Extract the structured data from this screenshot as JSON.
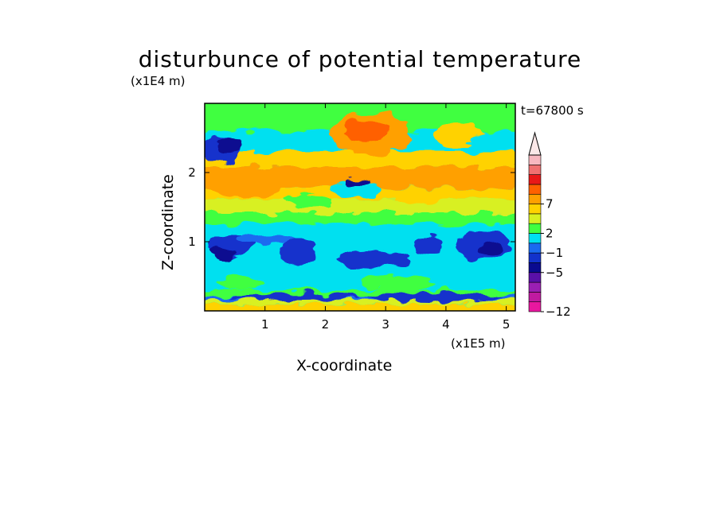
{
  "chart_data": {
    "type": "heatmap",
    "title": "disturbunce of potential temperature",
    "xlabel": "X-coordinate",
    "ylabel": "Z-coordinate",
    "x_unit": "(x1E5 m)",
    "y_unit": "(x1E4 m)",
    "time_label": "t=67800 s",
    "xlim": [
      0,
      5.15
    ],
    "ylim": [
      0,
      3.0
    ],
    "x_ticks": [
      "1",
      "2",
      "3",
      "4",
      "5"
    ],
    "y_ticks": [
      "1",
      "2"
    ],
    "x_tick_values": [
      1,
      2,
      3,
      4,
      5
    ],
    "y_tick_values": [
      1,
      2
    ],
    "colorbar_labels": [
      "7",
      "2",
      "−1",
      "−5",
      "−12"
    ],
    "colorbar_label_levels": [
      7,
      2,
      -1,
      -5,
      -12
    ],
    "colorbar_colors": [
      "#e8179f",
      "#c01aa0",
      "#9b1fb3",
      "#5a10a8",
      "#0a0a90",
      "#1232cc",
      "#1a6af0",
      "#00e0f0",
      "#40ff40",
      "#d8f020",
      "#ffd200",
      "#ffa000",
      "#ff6000",
      "#e81818",
      "#f07070",
      "#f8b8c0"
    ],
    "colors": {
      "very_cold": "#0a0a90",
      "cold": "#1232cc",
      "cool": "#1a6af0",
      "near_zero": "#00e0f0",
      "slight_warm": "#40ff40",
      "warm": "#d8f020",
      "warmer": "#ffd200",
      "hot": "#ffa000",
      "hotter": "#ff6000"
    },
    "bands": [
      {
        "z0": 0.0,
        "z1": 0.1,
        "level": "warmer"
      },
      {
        "z0": 0.1,
        "z1": 0.16,
        "level": "warm"
      },
      {
        "z0": 0.16,
        "z1": 0.22,
        "level": "cool"
      },
      {
        "z0": 0.22,
        "z1": 0.3,
        "level": "slight_warm"
      },
      {
        "z0": 0.3,
        "z1": 0.55,
        "level": "near_zero"
      },
      {
        "z0": 0.55,
        "z1": 1.25,
        "level": "near_zero"
      },
      {
        "z0": 1.25,
        "z1": 1.42,
        "level": "slight_warm"
      },
      {
        "z0": 1.42,
        "z1": 1.62,
        "level": "warm"
      },
      {
        "z0": 1.62,
        "z1": 1.78,
        "level": "warmer"
      },
      {
        "z0": 1.78,
        "z1": 2.08,
        "level": "hot"
      },
      {
        "z0": 2.08,
        "z1": 2.3,
        "level": "warmer"
      },
      {
        "z0": 2.3,
        "z1": 2.6,
        "level": "near_zero"
      },
      {
        "z0": 2.6,
        "z1": 3.0,
        "level": "slight_warm"
      }
    ],
    "blobs": [
      {
        "x": 0.4,
        "z": 0.95,
        "rx": 0.4,
        "rz": 0.16,
        "level": "cold"
      },
      {
        "x": 0.3,
        "z": 0.85,
        "rx": 0.2,
        "rz": 0.08,
        "level": "very_cold"
      },
      {
        "x": 1.55,
        "z": 0.85,
        "rx": 0.3,
        "rz": 0.2,
        "level": "cold"
      },
      {
        "x": 2.8,
        "z": 0.75,
        "rx": 0.6,
        "rz": 0.12,
        "level": "cold"
      },
      {
        "x": 3.7,
        "z": 0.95,
        "rx": 0.25,
        "rz": 0.12,
        "level": "cold"
      },
      {
        "x": 4.6,
        "z": 0.95,
        "rx": 0.45,
        "rz": 0.22,
        "level": "cold"
      },
      {
        "x": 4.75,
        "z": 0.9,
        "rx": 0.2,
        "rz": 0.1,
        "level": "very_cold"
      },
      {
        "x": 1.0,
        "z": 1.05,
        "rx": 0.5,
        "rz": 0.08,
        "level": "cool"
      },
      {
        "x": 3.8,
        "z": 0.2,
        "rx": 1.1,
        "rz": 0.06,
        "level": "cold"
      },
      {
        "x": 1.5,
        "z": 0.2,
        "rx": 1.1,
        "rz": 0.05,
        "level": "cold"
      },
      {
        "x": 0.25,
        "z": 2.35,
        "rx": 0.35,
        "rz": 0.2,
        "level": "cold"
      },
      {
        "x": 0.4,
        "z": 2.4,
        "rx": 0.22,
        "rz": 0.12,
        "level": "very_cold"
      },
      {
        "x": 1.4,
        "z": 2.4,
        "rx": 0.55,
        "rz": 0.08,
        "level": "near_zero"
      },
      {
        "x": 2.5,
        "z": 1.75,
        "rx": 0.45,
        "rz": 0.1,
        "level": "near_zero"
      },
      {
        "x": 2.55,
        "z": 1.85,
        "rx": 0.2,
        "rz": 0.06,
        "level": "very_cold"
      },
      {
        "x": 0.7,
        "z": 1.82,
        "rx": 0.6,
        "rz": 0.18,
        "level": "hot"
      },
      {
        "x": 2.75,
        "z": 2.55,
        "rx": 0.65,
        "rz": 0.3,
        "level": "hot"
      },
      {
        "x": 2.7,
        "z": 2.6,
        "rx": 0.4,
        "rz": 0.15,
        "level": "hotter"
      },
      {
        "x": 4.2,
        "z": 2.55,
        "rx": 0.4,
        "rz": 0.18,
        "level": "warmer"
      },
      {
        "x": 4.7,
        "z": 2.45,
        "rx": 0.3,
        "rz": 0.15,
        "level": "near_zero"
      },
      {
        "x": 3.6,
        "z": 1.65,
        "rx": 0.4,
        "rz": 0.1,
        "level": "warmer"
      },
      {
        "x": 1.7,
        "z": 1.6,
        "rx": 0.4,
        "rz": 0.08,
        "level": "slight_warm"
      },
      {
        "x": 3.2,
        "z": 0.4,
        "rx": 0.6,
        "rz": 0.12,
        "level": "slight_warm"
      },
      {
        "x": 0.6,
        "z": 0.4,
        "rx": 0.4,
        "rz": 0.1,
        "level": "slight_warm"
      }
    ]
  }
}
